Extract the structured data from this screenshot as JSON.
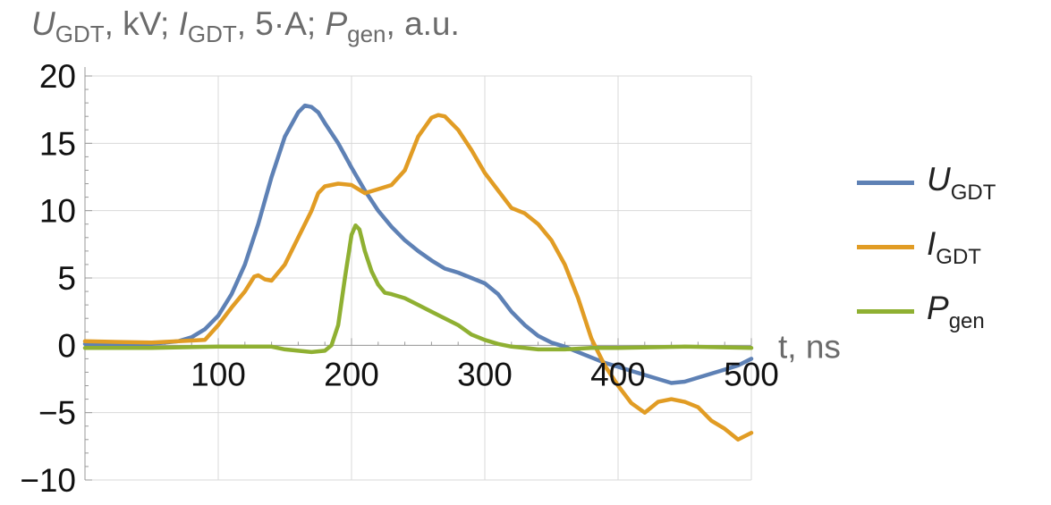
{
  "chart_data": {
    "type": "line",
    "title": "",
    "ylabel": {
      "parts": [
        {
          "main": "U",
          "sub": "GDT",
          "suffix": ", kV; "
        },
        {
          "main": "I",
          "sub": "GDT",
          "suffix": ", 5·A; "
        },
        {
          "main": "P",
          "sub": "gen",
          "suffix": ", a.u."
        }
      ]
    },
    "xlabel": "t, ns",
    "xlim": [
      0,
      500
    ],
    "ylim": [
      -10,
      20
    ],
    "x_ticks": [
      100,
      200,
      300,
      400,
      500
    ],
    "y_ticks": [
      -10,
      -5,
      0,
      5,
      10,
      15,
      20
    ],
    "grid": true,
    "legend_position": "right",
    "series": [
      {
        "name": {
          "main": "U",
          "sub": "GDT"
        },
        "color": "#5e81b5",
        "x": [
          0,
          50,
          70,
          80,
          90,
          100,
          110,
          120,
          130,
          140,
          150,
          160,
          165,
          170,
          175,
          180,
          190,
          200,
          210,
          220,
          230,
          240,
          250,
          260,
          270,
          280,
          290,
          300,
          310,
          320,
          330,
          340,
          350,
          360,
          370,
          380,
          390,
          400,
          410,
          420,
          430,
          440,
          450,
          460,
          470,
          480,
          490,
          500
        ],
        "y": [
          0.1,
          0.1,
          0.3,
          0.6,
          1.2,
          2.2,
          3.8,
          6.0,
          9.0,
          12.5,
          15.5,
          17.3,
          17.8,
          17.7,
          17.3,
          16.5,
          15.0,
          13.2,
          11.5,
          10.0,
          8.8,
          7.8,
          7.0,
          6.3,
          5.7,
          5.4,
          5.0,
          4.6,
          3.8,
          2.5,
          1.5,
          0.7,
          0.2,
          -0.1,
          -0.5,
          -0.9,
          -1.3,
          -1.6,
          -1.9,
          -2.2,
          -2.5,
          -2.8,
          -2.7,
          -2.4,
          -2.1,
          -1.8,
          -1.5,
          -1.0
        ]
      },
      {
        "name": {
          "main": "I",
          "sub": "GDT"
        },
        "color": "#e19c24",
        "x": [
          0,
          50,
          90,
          100,
          110,
          120,
          127,
          130,
          135,
          140,
          150,
          160,
          170,
          175,
          180,
          190,
          200,
          210,
          220,
          230,
          240,
          250,
          260,
          265,
          270,
          280,
          290,
          300,
          310,
          320,
          330,
          340,
          350,
          360,
          370,
          380,
          385,
          390,
          400,
          410,
          420,
          430,
          440,
          450,
          460,
          470,
          480,
          490,
          500
        ],
        "y": [
          0.3,
          0.2,
          0.4,
          1.5,
          2.8,
          4.0,
          5.1,
          5.2,
          4.9,
          4.8,
          6.0,
          8.0,
          10.0,
          11.3,
          11.8,
          12.0,
          11.9,
          11.3,
          11.6,
          11.9,
          13.0,
          15.5,
          16.9,
          17.1,
          17.0,
          16.0,
          14.5,
          12.8,
          11.5,
          10.2,
          9.8,
          9.0,
          7.8,
          6.0,
          3.5,
          0.5,
          -0.5,
          -1.5,
          -3.0,
          -4.3,
          -5.0,
          -4.2,
          -4.0,
          -4.2,
          -4.6,
          -5.6,
          -6.2,
          -7.0,
          -6.5
        ]
      },
      {
        "name": {
          "main": "P",
          "sub": "gen"
        },
        "color": "#8fb032",
        "x": [
          0,
          50,
          100,
          140,
          150,
          160,
          170,
          180,
          185,
          190,
          195,
          200,
          203,
          206,
          210,
          215,
          220,
          225,
          230,
          240,
          250,
          260,
          270,
          280,
          290,
          300,
          310,
          320,
          330,
          340,
          350,
          360,
          380,
          400,
          450,
          500
        ],
        "y": [
          -0.2,
          -0.2,
          -0.1,
          -0.1,
          -0.3,
          -0.4,
          -0.5,
          -0.4,
          0.0,
          1.5,
          5.0,
          8.2,
          8.9,
          8.6,
          7.0,
          5.5,
          4.5,
          3.9,
          3.8,
          3.5,
          3.0,
          2.5,
          2.0,
          1.5,
          0.8,
          0.4,
          0.1,
          -0.1,
          -0.2,
          -0.3,
          -0.3,
          -0.3,
          -0.2,
          -0.2,
          -0.1,
          -0.2
        ]
      }
    ]
  }
}
